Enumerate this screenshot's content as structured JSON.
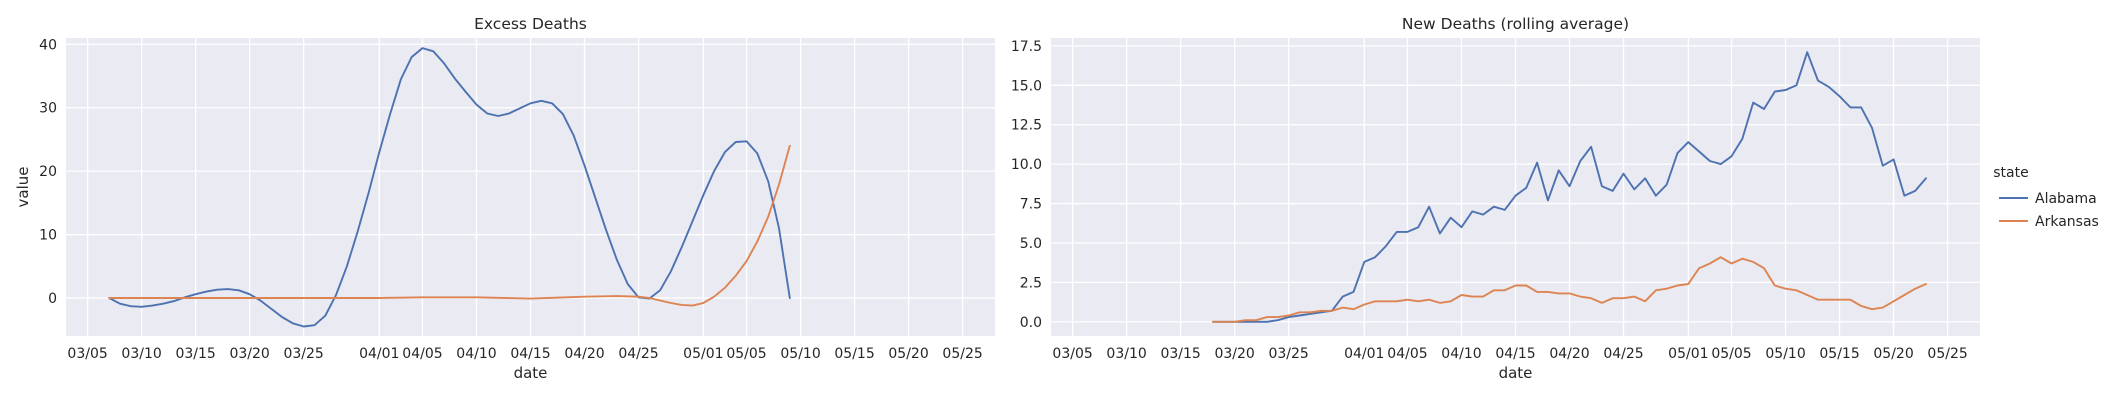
{
  "legend": {
    "title": "state",
    "entries": [
      {
        "name": "Alabama",
        "color": "#4c72b0"
      },
      {
        "name": "Arkansas",
        "color": "#dd8452"
      }
    ]
  },
  "chart_data": [
    {
      "type": "line",
      "title": "Excess Deaths",
      "xlabel": "date",
      "ylabel": "value",
      "x_type": "date",
      "xlim": [
        "03/03",
        "05/28"
      ],
      "ylim": [
        -6,
        41
      ],
      "xticks": [
        "03/05",
        "03/10",
        "03/15",
        "03/20",
        "03/25",
        "04/01",
        "04/05",
        "04/10",
        "04/15",
        "04/20",
        "04/25",
        "05/01",
        "05/05",
        "05/10",
        "05/15",
        "05/20",
        "05/25"
      ],
      "yticks": [
        0,
        10,
        20,
        30,
        40
      ],
      "grid": true,
      "series": [
        {
          "name": "Alabama",
          "color": "#4c72b0",
          "x": [
            "03/07",
            "03/08",
            "03/09",
            "03/10",
            "03/11",
            "03/12",
            "03/13",
            "03/14",
            "03/15",
            "03/16",
            "03/17",
            "03/18",
            "03/19",
            "03/20",
            "03/21",
            "03/22",
            "03/23",
            "03/24",
            "03/25",
            "03/26",
            "03/27",
            "03/28",
            "03/29",
            "03/30",
            "03/31",
            "04/01",
            "04/02",
            "04/03",
            "04/04",
            "04/05",
            "04/06",
            "04/07",
            "04/08",
            "04/09",
            "04/10",
            "04/11",
            "04/12",
            "04/13",
            "04/14",
            "04/15",
            "04/16",
            "04/17",
            "04/18",
            "04/19",
            "04/20",
            "04/21",
            "04/22",
            "04/23",
            "04/24",
            "04/25",
            "04/26",
            "04/27",
            "04/28",
            "04/29",
            "04/30",
            "05/01",
            "05/02",
            "05/03",
            "05/04",
            "05/05",
            "05/06",
            "05/07",
            "05/08",
            "05/09"
          ],
          "y": [
            0,
            -0.9,
            -1.3,
            -1.4,
            -1.2,
            -0.9,
            -0.5,
            0.1,
            0.6,
            1.0,
            1.3,
            1.4,
            1.2,
            0.6,
            -0.4,
            -1.7,
            -3.0,
            -4.0,
            -4.5,
            -4.3,
            -2.8,
            0.5,
            5.0,
            10.5,
            16.5,
            23.0,
            29.0,
            34.5,
            38.0,
            39.4,
            38.9,
            37.0,
            34.6,
            32.5,
            30.5,
            29.1,
            28.7,
            29.1,
            29.9,
            30.7,
            31.1,
            30.7,
            29.0,
            25.6,
            20.9,
            15.8,
            10.7,
            6.0,
            2.2,
            0.1,
            -0.1,
            1.2,
            4.2,
            8.0,
            12.1,
            16.2,
            20.0,
            23.0,
            24.6,
            24.7,
            22.8,
            18.4,
            11.0,
            0
          ]
        },
        {
          "name": "Arkansas",
          "color": "#dd8452",
          "x": [
            "03/07",
            "03/10",
            "03/15",
            "03/20",
            "03/25",
            "04/01",
            "04/05",
            "04/10",
            "04/15",
            "04/20",
            "04/23",
            "04/25",
            "04/26",
            "04/27",
            "04/28",
            "04/29",
            "04/30",
            "05/01",
            "05/02",
            "05/03",
            "05/04",
            "05/05",
            "05/06",
            "05/07",
            "05/08",
            "05/09"
          ],
          "y": [
            0,
            0,
            0,
            0,
            0,
            0,
            0.1,
            0.1,
            -0.1,
            0.2,
            0.3,
            0.2,
            0,
            -0.4,
            -0.8,
            -1.1,
            -1.2,
            -0.8,
            0.2,
            1.6,
            3.5,
            5.8,
            8.9,
            12.8,
            17.9,
            24.0
          ]
        }
      ]
    },
    {
      "type": "line",
      "title": "New Deaths (rolling average)",
      "xlabel": "date",
      "ylabel": "",
      "x_type": "date",
      "xlim": [
        "03/03",
        "05/28"
      ],
      "ylim": [
        -0.9,
        18.0
      ],
      "xticks": [
        "03/05",
        "03/10",
        "03/15",
        "03/20",
        "03/25",
        "04/01",
        "04/05",
        "04/10",
        "04/15",
        "04/20",
        "04/25",
        "05/01",
        "05/05",
        "05/10",
        "05/15",
        "05/20",
        "05/25"
      ],
      "yticks": [
        "0.0",
        "2.5",
        "5.0",
        "7.5",
        "10.0",
        "12.5",
        "15.0",
        "17.5"
      ],
      "grid": true,
      "series": [
        {
          "name": "Alabama",
          "color": "#4c72b0",
          "x": [
            "03/18",
            "03/19",
            "03/20",
            "03/21",
            "03/22",
            "03/23",
            "03/24",
            "03/25",
            "03/26",
            "03/27",
            "03/28",
            "03/29",
            "03/30",
            "03/31",
            "04/01",
            "04/02",
            "04/03",
            "04/04",
            "04/05",
            "04/06",
            "04/07",
            "04/08",
            "04/09",
            "04/10",
            "04/11",
            "04/12",
            "04/13",
            "04/14",
            "04/15",
            "04/16",
            "04/17",
            "04/18",
            "04/19",
            "04/20",
            "04/21",
            "04/22",
            "04/23",
            "04/24",
            "04/25",
            "04/26",
            "04/27",
            "04/28",
            "04/29",
            "04/30",
            "05/01",
            "05/02",
            "05/03",
            "05/04",
            "05/05",
            "05/06",
            "05/07",
            "05/08",
            "05/09",
            "05/10",
            "05/11",
            "05/12",
            "05/13",
            "05/14",
            "05/15",
            "05/16",
            "05/17",
            "05/18",
            "05/19",
            "05/20",
            "05/21",
            "05/22",
            "05/23"
          ],
          "y": [
            0,
            0,
            0,
            0,
            0,
            0,
            0.1,
            0.3,
            0.4,
            0.5,
            0.6,
            0.7,
            1.6,
            1.9,
            3.8,
            4.1,
            4.8,
            5.7,
            5.7,
            6.0,
            7.3,
            5.6,
            6.6,
            6.0,
            7.0,
            6.8,
            7.3,
            7.1,
            8.0,
            8.5,
            10.1,
            7.7,
            9.6,
            8.6,
            10.2,
            11.1,
            8.6,
            8.3,
            9.4,
            8.4,
            9.1,
            8.0,
            8.7,
            10.7,
            11.4,
            10.8,
            10.2,
            10.0,
            10.5,
            11.6,
            13.9,
            13.5,
            14.6,
            14.7,
            15.0,
            17.1,
            15.3,
            14.9,
            14.3,
            13.6,
            13.6,
            12.3,
            9.9,
            10.3,
            8.0,
            8.3,
            9.1
          ]
        },
        {
          "name": "Arkansas",
          "color": "#dd8452",
          "x": [
            "03/18",
            "03/19",
            "03/20",
            "03/21",
            "03/22",
            "03/23",
            "03/24",
            "03/25",
            "03/26",
            "03/27",
            "03/28",
            "03/29",
            "03/30",
            "03/31",
            "04/01",
            "04/02",
            "04/03",
            "04/04",
            "04/05",
            "04/06",
            "04/07",
            "04/08",
            "04/09",
            "04/10",
            "04/11",
            "04/12",
            "04/13",
            "04/14",
            "04/15",
            "04/16",
            "04/17",
            "04/18",
            "04/19",
            "04/20",
            "04/21",
            "04/22",
            "04/23",
            "04/24",
            "04/25",
            "04/26",
            "04/27",
            "04/28",
            "04/29",
            "04/30",
            "05/01",
            "05/02",
            "05/03",
            "05/04",
            "05/05",
            "05/06",
            "05/07",
            "05/08",
            "05/09",
            "05/10",
            "05/11",
            "05/12",
            "05/13",
            "05/14",
            "05/15",
            "05/16",
            "05/17",
            "05/18",
            "05/19",
            "05/20",
            "05/21",
            "05/22",
            "05/23"
          ],
          "y": [
            0,
            0,
            0,
            0.1,
            0.1,
            0.3,
            0.3,
            0.4,
            0.6,
            0.6,
            0.7,
            0.7,
            0.9,
            0.8,
            1.1,
            1.3,
            1.3,
            1.3,
            1.4,
            1.3,
            1.4,
            1.2,
            1.3,
            1.7,
            1.6,
            1.6,
            2.0,
            2.0,
            2.3,
            2.3,
            1.9,
            1.9,
            1.8,
            1.8,
            1.6,
            1.5,
            1.2,
            1.5,
            1.5,
            1.6,
            1.3,
            2.0,
            2.1,
            2.3,
            2.4,
            3.4,
            3.7,
            4.1,
            3.7,
            4.0,
            3.8,
            3.4,
            2.3,
            2.1,
            2.0,
            1.7,
            1.4,
            1.4,
            1.4,
            1.4,
            1.0,
            0.8,
            0.9,
            1.3,
            1.7,
            2.1,
            2.4
          ]
        }
      ]
    }
  ]
}
